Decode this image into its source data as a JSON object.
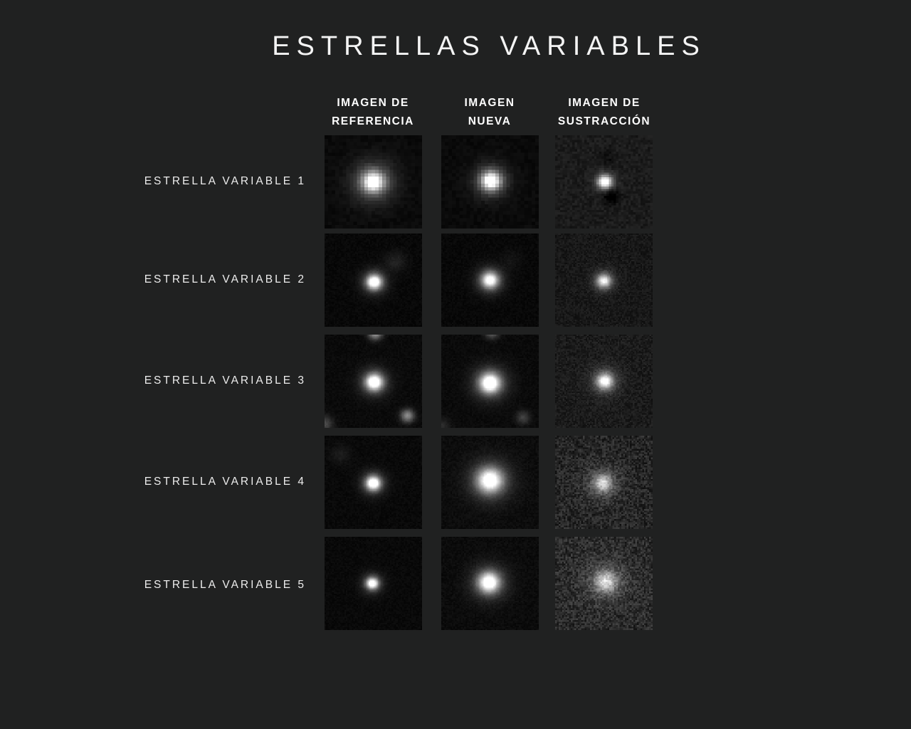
{
  "title": "ESTRELLAS VARIABLES",
  "colors": {
    "background": "#202121",
    "title_text": "#f4f4f4",
    "header_text": "#ffffff",
    "label_text": "#ededed",
    "tile_dark": "#0a0a0a"
  },
  "columns": [
    {
      "id": "referencia",
      "line1": "IMAGEN DE",
      "line2": "REFERENCIA"
    },
    {
      "id": "nueva",
      "line1": "IMAGEN",
      "line2": "NUEVA"
    },
    {
      "id": "sustraccion",
      "line1": "IMAGEN DE",
      "line2": "SUSTRACCIÓN"
    }
  ],
  "rows": [
    {
      "label": "ESTRELLA VARIABLE 1",
      "tiles": [
        {
          "desc": "bright fuzzy pixelated star centered",
          "grid": 27,
          "base": 10,
          "noise": 5,
          "stars": [
            {
              "x": 0.5,
              "y": 0.5,
              "sigma": 0.075,
              "peak": 225
            },
            {
              "x": 0.5,
              "y": 0.5,
              "sigma": 0.16,
              "peak": 80
            }
          ]
        },
        {
          "desc": "bright pixelated star centered, slightly tighter",
          "grid": 27,
          "base": 10,
          "noise": 5,
          "stars": [
            {
              "x": 0.51,
              "y": 0.49,
              "sigma": 0.068,
              "peak": 235
            },
            {
              "x": 0.51,
              "y": 0.49,
              "sigma": 0.13,
              "peak": 70
            }
          ]
        },
        {
          "desc": "residual star on grainy field with dark dip below right",
          "grid": 40,
          "base": 27,
          "noise": 10,
          "stars": [
            {
              "x": 0.51,
              "y": 0.5,
              "sigma": 0.048,
              "peak": 225
            },
            {
              "x": 0.51,
              "y": 0.5,
              "sigma": 0.085,
              "peak": 45
            },
            {
              "x": 0.57,
              "y": 0.655,
              "sigma": 0.055,
              "peak": -45
            },
            {
              "x": 0.53,
              "y": 0.25,
              "sigma": 0.06,
              "peak": -14
            }
          ]
        }
      ]
    },
    {
      "label": "ESTRELLA VARIABLE 2",
      "tiles": [
        {
          "desc": "compact bright star, faint fuzzy companion upper right",
          "grid": 64,
          "base": 8,
          "noise": 5,
          "stars": [
            {
              "x": 0.51,
              "y": 0.52,
              "sigma": 0.052,
              "peak": 255
            },
            {
              "x": 0.51,
              "y": 0.52,
              "sigma": 0.095,
              "peak": 70
            },
            {
              "x": 0.73,
              "y": 0.3,
              "sigma": 0.075,
              "peak": 26
            }
          ]
        },
        {
          "desc": "softer star centered, companion barely visible",
          "grid": 64,
          "base": 8,
          "noise": 5,
          "stars": [
            {
              "x": 0.5,
              "y": 0.5,
              "sigma": 0.058,
              "peak": 225
            },
            {
              "x": 0.5,
              "y": 0.5,
              "sigma": 0.105,
              "peak": 65
            },
            {
              "x": 0.72,
              "y": 0.28,
              "sigma": 0.07,
              "peak": 12
            }
          ]
        },
        {
          "desc": "modest residual star on grainy field",
          "grid": 64,
          "base": 24,
          "noise": 11,
          "stars": [
            {
              "x": 0.5,
              "y": 0.51,
              "sigma": 0.05,
              "peak": 185
            },
            {
              "x": 0.5,
              "y": 0.51,
              "sigma": 0.09,
              "peak": 45
            }
          ]
        }
      ]
    },
    {
      "label": "ESTRELLA VARIABLE 3",
      "tiles": [
        {
          "desc": "bright star centered, star cut at top edge, small star bottom right, glow bottom left",
          "grid": 64,
          "base": 10,
          "noise": 5,
          "stars": [
            {
              "x": 0.51,
              "y": 0.51,
              "sigma": 0.058,
              "peak": 255
            },
            {
              "x": 0.51,
              "y": 0.51,
              "sigma": 0.105,
              "peak": 75
            },
            {
              "x": 0.52,
              "y": -0.02,
              "sigma": 0.05,
              "peak": 150
            },
            {
              "x": 0.85,
              "y": 0.87,
              "sigma": 0.048,
              "peak": 130
            },
            {
              "x": 0.0,
              "y": 0.96,
              "sigma": 0.06,
              "peak": 65
            }
          ]
        },
        {
          "desc": "slightly larger star centered, fainter neighbours",
          "grid": 64,
          "base": 10,
          "noise": 5,
          "stars": [
            {
              "x": 0.5,
              "y": 0.52,
              "sigma": 0.068,
              "peak": 255
            },
            {
              "x": 0.5,
              "y": 0.52,
              "sigma": 0.125,
              "peak": 85
            },
            {
              "x": 0.52,
              "y": -0.03,
              "sigma": 0.05,
              "peak": 95
            },
            {
              "x": 0.84,
              "y": 0.89,
              "sigma": 0.05,
              "peak": 55
            },
            {
              "x": 0.0,
              "y": 0.98,
              "sigma": 0.06,
              "peak": 35
            }
          ]
        },
        {
          "desc": "residual star with halo on grainy field",
          "grid": 64,
          "base": 27,
          "noise": 13,
          "stars": [
            {
              "x": 0.51,
              "y": 0.5,
              "sigma": 0.055,
              "peak": 205
            },
            {
              "x": 0.51,
              "y": 0.5,
              "sigma": 0.11,
              "peak": 55
            }
          ]
        }
      ]
    },
    {
      "label": "ESTRELLA VARIABLE 4",
      "tiles": [
        {
          "desc": "compact bright star, faint smudge upper left",
          "grid": 64,
          "base": 9,
          "noise": 5,
          "stars": [
            {
              "x": 0.5,
              "y": 0.51,
              "sigma": 0.05,
              "peak": 255
            },
            {
              "x": 0.5,
              "y": 0.51,
              "sigma": 0.09,
              "peak": 70
            },
            {
              "x": 0.16,
              "y": 0.2,
              "sigma": 0.07,
              "peak": 20
            }
          ]
        },
        {
          "desc": "large soft bright star centered",
          "grid": 64,
          "base": 12,
          "noise": 6,
          "stars": [
            {
              "x": 0.5,
              "y": 0.48,
              "sigma": 0.085,
              "peak": 235
            },
            {
              "x": 0.5,
              "y": 0.48,
              "sigma": 0.155,
              "peak": 75
            }
          ]
        },
        {
          "desc": "faint fuzzy residual on very noisy bright grain",
          "grid": 56,
          "base": 38,
          "noise": 24,
          "stars": [
            {
              "x": 0.49,
              "y": 0.51,
              "sigma": 0.06,
              "peak": 130
            },
            {
              "x": 0.49,
              "y": 0.51,
              "sigma": 0.13,
              "peak": 55
            }
          ]
        }
      ]
    },
    {
      "label": "ESTRELLA VARIABLE 5",
      "tiles": [
        {
          "desc": "small compact star left of center",
          "grid": 64,
          "base": 9,
          "noise": 5,
          "stars": [
            {
              "x": 0.49,
              "y": 0.5,
              "sigma": 0.042,
              "peak": 245
            },
            {
              "x": 0.49,
              "y": 0.5,
              "sigma": 0.08,
              "peak": 60
            }
          ]
        },
        {
          "desc": "larger brighter star centered",
          "grid": 64,
          "base": 11,
          "noise": 6,
          "stars": [
            {
              "x": 0.49,
              "y": 0.49,
              "sigma": 0.072,
              "peak": 245
            },
            {
              "x": 0.49,
              "y": 0.49,
              "sigma": 0.135,
              "peak": 70
            }
          ]
        },
        {
          "desc": "fuzzy residual blob on very noisy bright grain",
          "grid": 56,
          "base": 44,
          "noise": 26,
          "stars": [
            {
              "x": 0.52,
              "y": 0.48,
              "sigma": 0.075,
              "peak": 135
            },
            {
              "x": 0.52,
              "y": 0.48,
              "sigma": 0.15,
              "peak": 50
            }
          ]
        }
      ]
    }
  ]
}
